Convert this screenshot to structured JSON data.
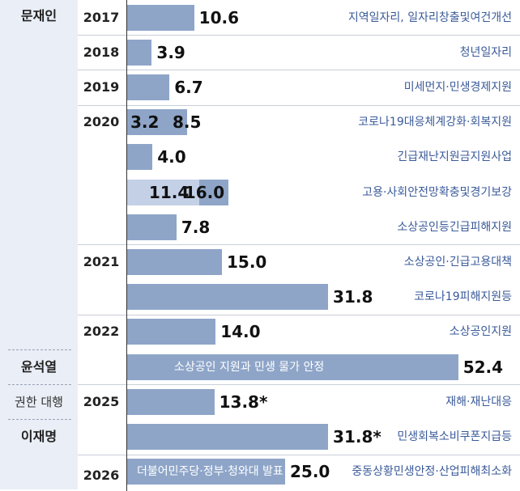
{
  "chart_data": {
    "type": "bar",
    "orientation": "horizontal",
    "title": "",
    "xlabel": "",
    "ylabel": "",
    "grid": false,
    "colors": {
      "bar": "#8ea5c8",
      "bar_light": "#c3d0e6",
      "admin_bg": "#eaeef6",
      "desc_text": "#3a5a99"
    },
    "administrations": [
      {
        "name": "문재인",
        "style": "bold"
      },
      {
        "name": "윤석열",
        "style": "bold"
      },
      {
        "name": "권한 대행",
        "style": "light"
      },
      {
        "name": "이재명",
        "style": "bold"
      }
    ],
    "items": [
      {
        "admin": "문재인",
        "year": "2017",
        "value": 10.6,
        "value_label": "10.6",
        "description": "지역일자리, 일자리창출및여건개선"
      },
      {
        "admin": "문재인",
        "year": "2018",
        "value": 3.9,
        "value_label": "3.9",
        "description": "청년일자리"
      },
      {
        "admin": "문재인",
        "year": "2019",
        "value": 6.7,
        "value_label": "6.7",
        "description": "미세먼지·민생경제지원"
      },
      {
        "admin": "문재인",
        "year": "2020",
        "value": 8.5,
        "value_label": "8.5",
        "sub_value": 3.2,
        "sub_value_label": "3.2",
        "description": "코로나19대응체계강화·회복지원"
      },
      {
        "admin": "문재인",
        "year": "",
        "value": 4.0,
        "value_label": "4.0",
        "description": "긴급재난지원금지원사업"
      },
      {
        "admin": "문재인",
        "year": "",
        "value": 16.0,
        "value_label": "16.0",
        "sub_value": 11.4,
        "sub_value_label": "11.4",
        "description": "고용·사회안전망확충및경기보강"
      },
      {
        "admin": "문재인",
        "year": "",
        "value": 7.8,
        "value_label": "7.8",
        "description": "소상공인등긴급피해지원"
      },
      {
        "admin": "문재인",
        "year": "2021",
        "value": 15.0,
        "value_label": "15.0",
        "description": "소상공인·긴급고용대책"
      },
      {
        "admin": "문재인",
        "year": "",
        "value": 31.8,
        "value_label": "31.8",
        "description": "코로나19피해지원등"
      },
      {
        "admin": "문재인",
        "year": "2022",
        "value": 14.0,
        "value_label": "14.0",
        "description": "소상공인지원"
      },
      {
        "admin": "윤석열",
        "year": "",
        "value": 52.4,
        "value_label": "52.4",
        "inbar_text": "소상공인 지원과 민생 물가 안정",
        "description": ""
      },
      {
        "admin": "권한 대행",
        "year": "2025",
        "value": 13.8,
        "value_label": "13.8*",
        "description": "재해·재난대응"
      },
      {
        "admin": "이재명",
        "year": "",
        "value": 31.8,
        "value_label": "31.8*",
        "description": "민생회복소비쿠폰지급등"
      },
      {
        "admin": "이재명",
        "year": "2026",
        "value": 25.0,
        "value_label": "25.0",
        "inbar_text": "더불어민주당·정부·청와대 발표",
        "description": "중동상황민생안정·산업피해최소화"
      }
    ]
  }
}
